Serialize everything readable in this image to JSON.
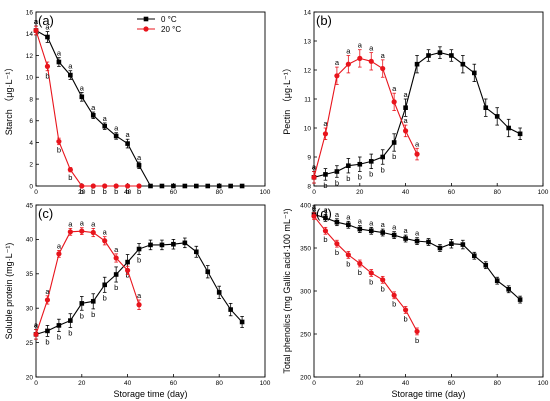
{
  "figure": {
    "legend": [
      {
        "label": "0 °C",
        "color": "#000000",
        "marker": "square"
      },
      {
        "label": "20 °C",
        "color": "#e8141c",
        "marker": "circle"
      }
    ],
    "xlabel": "Storage time (day)"
  },
  "chart_data": [
    {
      "type": "line",
      "panel": "(a)",
      "title": "",
      "xlabel": "",
      "ylabel": "Starch （μg·L⁻¹）",
      "xlim": [
        0,
        100
      ],
      "ylim": [
        0,
        16
      ],
      "xticks": [
        0,
        20,
        40,
        60,
        80,
        100
      ],
      "yticks": [
        0,
        2,
        4,
        6,
        8,
        10,
        12,
        14,
        16
      ],
      "legend_position": "top-right",
      "series": [
        {
          "name": "0 °C",
          "color": "#000000",
          "marker": "square",
          "x": [
            0,
            5,
            10,
            15,
            20,
            25,
            30,
            35,
            40,
            45,
            50,
            55,
            60,
            65,
            70,
            75,
            80,
            85,
            90
          ],
          "y": [
            14.3,
            13.7,
            11.4,
            10.2,
            8.2,
            6.5,
            5.5,
            4.6,
            3.9,
            1.9,
            0,
            0,
            0,
            0,
            0,
            0,
            0,
            0,
            0
          ],
          "err": [
            0.4,
            0.5,
            0.4,
            0.4,
            0.4,
            0.3,
            0.3,
            0.3,
            0.4,
            0.3,
            0,
            0,
            0,
            0,
            0,
            0,
            0,
            0,
            0
          ],
          "labels": [
            "a",
            "a",
            "a",
            "a",
            "a",
            "a",
            "a",
            "a",
            "a",
            "a"
          ]
        },
        {
          "name": "20 °C",
          "color": "#e8141c",
          "marker": "circle",
          "x": [
            0,
            5,
            10,
            15,
            20,
            25,
            30,
            35,
            40,
            45
          ],
          "y": [
            14.3,
            11.0,
            4.1,
            1.5,
            0,
            0,
            0,
            0,
            0,
            0
          ],
          "err": [
            0.4,
            0.4,
            0.3,
            0.2,
            0,
            0,
            0,
            0,
            0,
            0
          ],
          "labels": [
            "a",
            "b",
            "b",
            "b",
            "b",
            "b",
            "b",
            "b",
            "b",
            "b"
          ]
        }
      ]
    },
    {
      "type": "line",
      "panel": "(b)",
      "title": "",
      "xlabel": "",
      "ylabel": "Pectin （μg·L⁻¹）",
      "xlim": [
        0,
        100
      ],
      "ylim": [
        8,
        14
      ],
      "xticks": [
        0,
        20,
        40,
        60,
        80,
        100
      ],
      "yticks": [
        8,
        9,
        10,
        11,
        12,
        13,
        14
      ],
      "series": [
        {
          "name": "0 °C",
          "color": "#000000",
          "marker": "square",
          "x": [
            0,
            5,
            10,
            15,
            20,
            25,
            30,
            35,
            40,
            45,
            50,
            55,
            60,
            65,
            70,
            75,
            80,
            85,
            90
          ],
          "y": [
            8.3,
            8.4,
            8.5,
            8.7,
            8.75,
            8.85,
            9.0,
            9.5,
            10.7,
            12.2,
            12.5,
            12.6,
            12.5,
            12.2,
            11.9,
            10.7,
            10.4,
            10.0,
            9.8
          ],
          "err": [
            0.2,
            0.2,
            0.2,
            0.25,
            0.25,
            0.25,
            0.25,
            0.3,
            0.3,
            0.3,
            0.2,
            0.2,
            0.2,
            0.3,
            0.3,
            0.3,
            0.3,
            0.3,
            0.2
          ],
          "labels": [
            "a",
            "b",
            "b",
            "b",
            "b",
            "b",
            "b",
            "b",
            "a"
          ]
        },
        {
          "name": "20 °C",
          "color": "#e8141c",
          "marker": "circle",
          "x": [
            0,
            5,
            10,
            15,
            20,
            25,
            30,
            35,
            40,
            45
          ],
          "y": [
            8.3,
            9.8,
            11.8,
            12.2,
            12.4,
            12.3,
            12.05,
            10.9,
            9.9,
            9.1
          ],
          "err": [
            0.2,
            0.2,
            0.3,
            0.3,
            0.3,
            0.3,
            0.3,
            0.3,
            0.2,
            0.2
          ],
          "labels": [
            "a",
            "a",
            "a",
            "a",
            "a",
            "a",
            "a",
            "a",
            "a",
            "a"
          ]
        }
      ]
    },
    {
      "type": "line",
      "panel": "(c)",
      "title": "",
      "xlabel": "Storage time (day)",
      "ylabel": "Soluble protein (mg·L⁻¹)",
      "xlim": [
        0,
        100
      ],
      "ylim": [
        20,
        45
      ],
      "xticks": [
        0,
        20,
        40,
        60,
        80,
        100
      ],
      "yticks": [
        20,
        25,
        30,
        35,
        40,
        45
      ],
      "series": [
        {
          "name": "0 °C",
          "color": "#000000",
          "marker": "square",
          "x": [
            0,
            5,
            10,
            15,
            20,
            25,
            30,
            35,
            40,
            45,
            50,
            55,
            60,
            65,
            70,
            75,
            80,
            85,
            90
          ],
          "y": [
            26.2,
            26.7,
            27.5,
            28.2,
            30.7,
            31.0,
            33.4,
            34.9,
            36.7,
            38.6,
            39.2,
            39.2,
            39.3,
            39.5,
            38.2,
            35.3,
            32.3,
            29.8,
            28.0
          ],
          "err": [
            0.7,
            0.8,
            0.9,
            1.0,
            1.0,
            1.1,
            1.1,
            1.1,
            1.1,
            0.8,
            0.7,
            0.7,
            0.7,
            0.7,
            0.8,
            0.9,
            0.9,
            0.9,
            0.8
          ],
          "labels": [
            "a",
            "b",
            "b",
            "b",
            "b",
            "b",
            "b",
            "b",
            "b",
            "b"
          ]
        },
        {
          "name": "20 °C",
          "color": "#e8141c",
          "marker": "circle",
          "x": [
            0,
            5,
            10,
            15,
            20,
            25,
            30,
            35,
            40,
            45
          ],
          "y": [
            26.2,
            31.2,
            37.9,
            41.1,
            41.2,
            41.0,
            39.8,
            37.3,
            35.5,
            30.5
          ],
          "err": [
            0.7,
            0.6,
            0.5,
            0.5,
            0.5,
            0.6,
            0.6,
            0.6,
            0.6,
            0.7
          ],
          "labels": [
            "a",
            "a",
            "a",
            "a",
            "a",
            "a",
            "a",
            "a",
            "a",
            "a"
          ]
        }
      ]
    },
    {
      "type": "line",
      "panel": "(d)",
      "title": "",
      "xlabel": "Storage time (day)",
      "ylabel": "Total phenolics (mg Gallic acid·100 mL⁻¹)",
      "xlim": [
        0,
        100
      ],
      "ylim": [
        200,
        400
      ],
      "xticks": [
        0,
        20,
        40,
        60,
        80,
        100
      ],
      "yticks": [
        200,
        250,
        300,
        350,
        400
      ],
      "series": [
        {
          "name": "0 °C",
          "color": "#000000",
          "marker": "square",
          "x": [
            0,
            5,
            10,
            15,
            20,
            25,
            30,
            35,
            40,
            45,
            50,
            55,
            60,
            65,
            70,
            75,
            80,
            85,
            90
          ],
          "y": [
            389,
            385,
            380,
            377,
            372,
            370,
            368,
            365,
            361,
            358,
            357,
            350,
            355,
            354,
            341,
            330,
            312,
            302,
            290
          ],
          "err": [
            4,
            4,
            4,
            4,
            4,
            4,
            4,
            4,
            4,
            4,
            4,
            4,
            5,
            5,
            4,
            4,
            4,
            4,
            4
          ],
          "labels": [
            "a",
            "a",
            "a",
            "a",
            "a",
            "a",
            "a",
            "a",
            "a",
            "a"
          ]
        },
        {
          "name": "20 °C",
          "color": "#e8141c",
          "marker": "circle",
          "x": [
            0,
            5,
            10,
            15,
            20,
            25,
            30,
            35,
            40,
            45
          ],
          "y": [
            387,
            370,
            355,
            342,
            332,
            321,
            313,
            295,
            278,
            253
          ],
          "err": [
            4,
            4,
            4,
            4,
            4,
            4,
            4,
            4,
            4,
            4
          ],
          "labels": [
            "a",
            "b",
            "b",
            "b",
            "b",
            "b",
            "b",
            "b",
            "b",
            "b"
          ]
        }
      ]
    }
  ]
}
